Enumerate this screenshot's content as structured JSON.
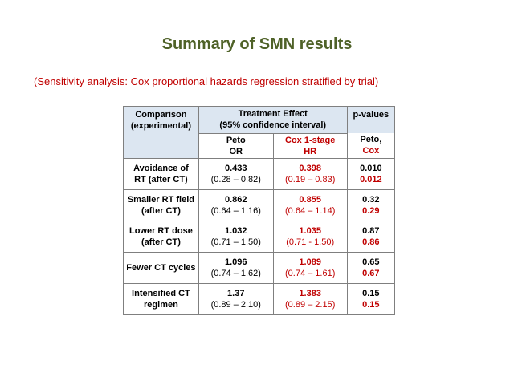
{
  "slide": {
    "title": "Summary of SMN results",
    "subtitle": "(Sensitivity analysis: Cox proportional hazards regression stratified by trial)"
  },
  "table": {
    "header": {
      "comparison_line1": "Comparison",
      "comparison_line2": "(experimental)",
      "effect_line1": "Treatment Effect",
      "effect_line2": "(95% confidence interval)",
      "pvalues": "p-values",
      "peto_line1": "Peto",
      "peto_line2": "OR",
      "cox_line1": "Cox 1-stage",
      "cox_line2": "HR",
      "pv_line1": "Peto,",
      "pv_line2": "Cox"
    },
    "rows": [
      {
        "label_line1": "Avoidance of",
        "label_line2": "RT (after CT)",
        "peto_or": "0.433",
        "peto_ci": "(0.28 – 0.82)",
        "cox_hr": "0.398",
        "cox_ci": "(0.19 – 0.83)",
        "p_peto": "0.010",
        "p_cox": "0.012"
      },
      {
        "label_line1": "Smaller RT field",
        "label_line2": "(after CT)",
        "peto_or": "0.862",
        "peto_ci": "(0.64 – 1.16)",
        "cox_hr": "0.855",
        "cox_ci": "(0.64 – 1.14)",
        "p_peto": "0.32",
        "p_cox": "0.29"
      },
      {
        "label_line1": "Lower RT dose",
        "label_line2": "(after CT)",
        "peto_or": "1.032",
        "peto_ci": "(0.71 – 1.50)",
        "cox_hr": "1.035",
        "cox_ci": "(0.71 - 1.50)",
        "p_peto": "0.87",
        "p_cox": "0.86"
      },
      {
        "label_line1": "Fewer CT cycles",
        "label_line2": "",
        "peto_or": "1.096",
        "peto_ci": "(0.74 – 1.62)",
        "cox_hr": "1.089",
        "cox_ci": "(0.74 – 1.61)",
        "p_peto": "0.65",
        "p_cox": "0.67"
      },
      {
        "label_line1": "Intensified CT",
        "label_line2": "regimen",
        "peto_or": "1.37",
        "peto_ci": "(0.89 – 2.10)",
        "cox_hr": "1.383",
        "cox_ci": "(0.89 – 2.15)",
        "p_peto": "0.15",
        "p_cox": "0.15"
      }
    ]
  },
  "colors": {
    "title": "#4f6228",
    "accent_red": "#c00000",
    "header_fill": "#dce6f1",
    "border": "#7f7f7f"
  }
}
